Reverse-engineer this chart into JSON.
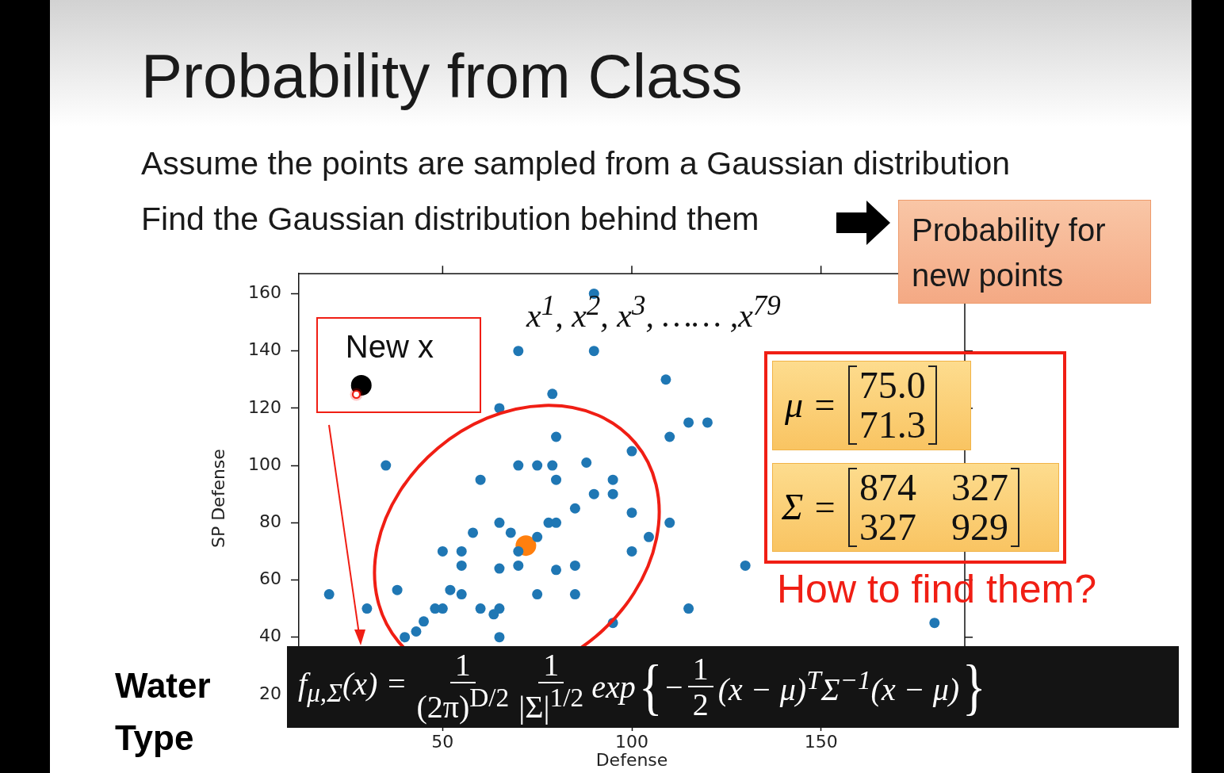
{
  "chart_data": {
    "type": "scatter",
    "title": "Probability from Class",
    "subtitle": "Assume the points are sampled from a Gaussian distribution",
    "xlabel": "Defense",
    "ylabel": "SP Defense",
    "xlim": [
      12,
      188
    ],
    "xticks": [
      50,
      100,
      150
    ],
    "ylim": [
      10,
      167
    ],
    "yticks": [
      20,
      40,
      60,
      80,
      100,
      120,
      140,
      160
    ],
    "grid": false,
    "marker": "circle",
    "series": [
      {
        "color": "#1f77b4",
        "x": [
          90,
          70,
          90,
          79,
          65,
          80,
          35,
          70,
          75,
          79,
          88,
          60,
          80,
          90,
          85,
          65,
          78,
          80,
          58,
          68,
          75,
          50,
          55,
          55,
          70,
          70,
          65,
          80,
          85,
          20,
          38,
          52,
          55,
          75,
          85,
          30,
          48,
          50,
          60,
          65,
          63.5,
          45,
          43,
          40,
          65,
          109,
          115,
          120,
          110,
          100,
          95,
          95,
          100,
          110,
          104.5,
          100,
          130,
          115,
          95,
          180
        ],
        "values": [
          160,
          140,
          140,
          125,
          120,
          110,
          100,
          100,
          100,
          100,
          101,
          95,
          95,
          90,
          85,
          80,
          80,
          80,
          76.5,
          76.5,
          75,
          70,
          70,
          65,
          70,
          65,
          64,
          63.5,
          65,
          55,
          56.5,
          56.5,
          55,
          55,
          55,
          50,
          50,
          50,
          50,
          50,
          48,
          45.5,
          42,
          40,
          40,
          130,
          115,
          115,
          110,
          105,
          95,
          90,
          83.5,
          80,
          75,
          70,
          65,
          50,
          45,
          45
        ]
      },
      {
        "color": "#ff7f0e",
        "x": [
          72
        ],
        "values": [
          72
        ]
      },
      {
        "name": "New x",
        "color": "#000000",
        "x": [
          28.5
        ],
        "values": [
          128
        ]
      }
    ],
    "annotations": [
      "Find the Gaussian distribution behind them",
      "Probability for new points",
      "x$^{1}$, x$^{2}$, x$^{3}$, …… ,x$^{79}$",
      "μ =",
      "75.0",
      "71.3",
      "Σ =",
      "874",
      "327",
      "327",
      "929",
      "How to find them?",
      "Water Type",
      "f$_{μ,Σ}$(x) =",
      "1",
      "(2π)$^{D/2}$",
      "1",
      "|Σ|$^{1/2}$",
      "exp",
      "{",
      "−",
      "1",
      "2",
      "(x − μ)$^{T}$Σ$^{−1}$(x − μ)",
      "}"
    ]
  }
}
